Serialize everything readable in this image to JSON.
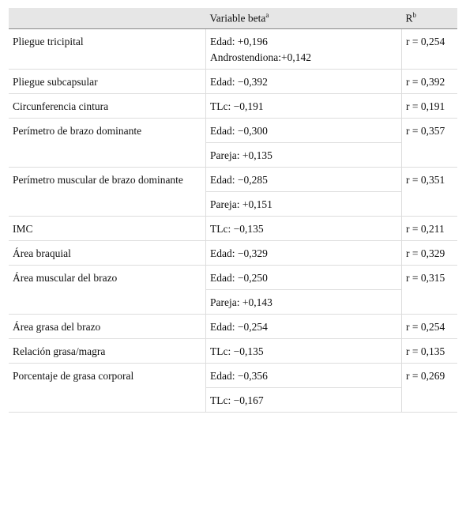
{
  "header": [
    {
      "text": "Variable beta",
      "sup": "a"
    },
    {
      "text": "R",
      "sup": "b"
    }
  ],
  "rows": [
    {
      "label": "Pliegue tricipital",
      "beta": [
        [
          "Edad: +0,196",
          "Androstendiona:+0,142"
        ]
      ],
      "r": "r = 0,254"
    },
    {
      "label": "Pliegue subcapsular",
      "beta": [
        [
          "Edad: −0,392"
        ]
      ],
      "r": "r = 0,392"
    },
    {
      "label": "Circunferencia cintura",
      "beta": [
        [
          "TLc: −0,191"
        ]
      ],
      "r": "r = 0,191"
    },
    {
      "label": "Perímetro de brazo dominante",
      "beta": [
        [
          "Edad: −0,300"
        ],
        [
          "Pareja: +0,135"
        ]
      ],
      "r": "r = 0,357"
    },
    {
      "label": "Perímetro muscular de brazo dominante",
      "beta": [
        [
          "Edad: −0,285"
        ],
        [
          "Pareja: +0,151"
        ]
      ],
      "r": "r = 0,351"
    },
    {
      "label": "IMC",
      "beta": [
        [
          "TLc: −0,135"
        ]
      ],
      "r": "r = 0,211"
    },
    {
      "label": "Área braquial",
      "beta": [
        [
          "Edad: −0,329"
        ]
      ],
      "r": "r = 0,329"
    },
    {
      "label": "Área muscular del brazo",
      "beta": [
        [
          "Edad: −0,250"
        ],
        [
          "Pareja: +0,143"
        ]
      ],
      "r": "r = 0,315"
    },
    {
      "label": "Área grasa del brazo",
      "beta": [
        [
          "Edad: −0,254"
        ]
      ],
      "r": "r = 0,254"
    },
    {
      "label": "Relación grasa/magra",
      "beta": [
        [
          "TLc: −0,135"
        ]
      ],
      "r": "r = 0,135"
    },
    {
      "label": "Porcentaje de grasa corporal",
      "beta": [
        [
          "Edad: −0,356"
        ],
        [
          "TLc: −0,167"
        ]
      ],
      "r": "r = 0,269"
    }
  ]
}
